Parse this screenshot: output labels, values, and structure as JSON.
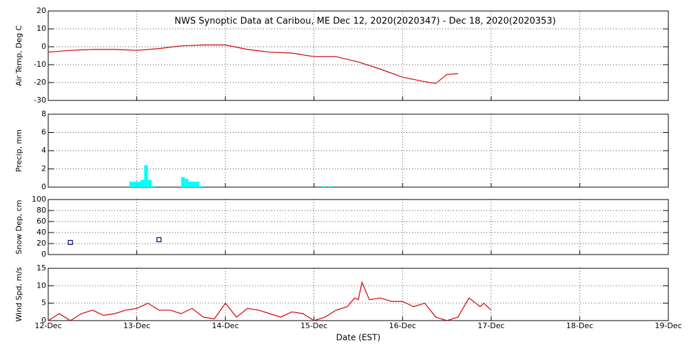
{
  "chart_data": [
    {
      "type": "line",
      "title": "NWS Synoptic Data at Caribou, ME   Dec 12, 2020(2020347) - Dec 18, 2020(2020353)",
      "y_label": "Air Temp, Deg C",
      "xlim": [
        0,
        168
      ],
      "xticks": [
        0,
        24,
        48,
        72,
        96,
        120,
        144,
        168
      ],
      "ylim": [
        -30,
        20
      ],
      "yticks": [
        -30,
        -20,
        -10,
        0,
        10,
        20
      ],
      "grid": true,
      "color": "#cc0000",
      "x": [
        0,
        6,
        12,
        18,
        24,
        30,
        36,
        42,
        48,
        54,
        60,
        66,
        72,
        78,
        84,
        90,
        96,
        102,
        105,
        108,
        111
      ],
      "values": [
        -3,
        -2,
        -1.5,
        -1.5,
        -2,
        -1,
        0.5,
        1,
        1,
        -1.5,
        -3,
        -3.5,
        -5.5,
        -5.5,
        -8.5,
        -12.5,
        -17,
        -19.5,
        -20.5,
        -15.5,
        -15
      ]
    },
    {
      "type": "bar",
      "y_label": "Precip, mm",
      "xlim": [
        0,
        168
      ],
      "xticks": [
        0,
        24,
        48,
        72,
        96,
        120,
        144,
        168
      ],
      "ylim": [
        0,
        8
      ],
      "yticks": [
        0,
        2,
        4,
        6,
        8
      ],
      "grid": true,
      "color": "#00ffff",
      "x": [
        22,
        23,
        24,
        25,
        26,
        27,
        28,
        36,
        37,
        38,
        39,
        40,
        41,
        74,
        76
      ],
      "values": [
        0.6,
        0.6,
        0.6,
        0.8,
        2.4,
        0.8,
        0.1,
        1.1,
        0.9,
        0.6,
        0.6,
        0.6,
        0.1,
        0.1,
        0.1
      ]
    },
    {
      "type": "scatter",
      "y_label": "Snow Dep, cm",
      "xlim": [
        0,
        168
      ],
      "xticks": [
        0,
        24,
        48,
        72,
        96,
        120,
        144,
        168
      ],
      "ylim": [
        0,
        100
      ],
      "yticks": [
        0,
        20,
        40,
        60,
        80,
        100
      ],
      "grid": true,
      "color": "#000080",
      "x": [
        6,
        30
      ],
      "values": [
        22,
        27
      ]
    },
    {
      "type": "line",
      "y_label": "Wind Spd, m/s",
      "x_label": "Date (EST)",
      "xlim": [
        0,
        168
      ],
      "xticks": [
        {
          "value": 0,
          "label": "12-Dec"
        },
        {
          "value": 24,
          "label": "13-Dec"
        },
        {
          "value": 48,
          "label": "14-Dec"
        },
        {
          "value": 72,
          "label": "15-Dec"
        },
        {
          "value": 96,
          "label": "16-Dec"
        },
        {
          "value": 120,
          "label": "17-Dec"
        },
        {
          "value": 144,
          "label": "18-Dec"
        },
        {
          "value": 168,
          "label": "19-Dec"
        }
      ],
      "ylim": [
        0,
        15
      ],
      "yticks": [
        0,
        5,
        10,
        15
      ],
      "grid": true,
      "color": "#cc0000",
      "x": [
        0,
        3,
        6,
        9,
        12,
        15,
        18,
        21,
        24,
        27,
        30,
        33,
        36,
        39,
        42,
        45,
        48,
        51,
        54,
        57,
        60,
        63,
        66,
        69,
        72,
        75,
        78,
        81,
        83,
        84,
        85,
        87,
        90,
        93,
        96,
        99,
        102,
        105,
        108,
        111,
        114,
        117,
        118,
        120
      ],
      "values": [
        0,
        2,
        0,
        2,
        3,
        1.5,
        2,
        3,
        3.5,
        5,
        3,
        3,
        2,
        3.5,
        1,
        0.5,
        5,
        1,
        3.5,
        3,
        2,
        1,
        2.5,
        2,
        0,
        1,
        3,
        4,
        6.5,
        6,
        11,
        6,
        6.5,
        5.5,
        5.5,
        4,
        5,
        1,
        0,
        1,
        6.5,
        4,
        5,
        3
      ]
    }
  ]
}
